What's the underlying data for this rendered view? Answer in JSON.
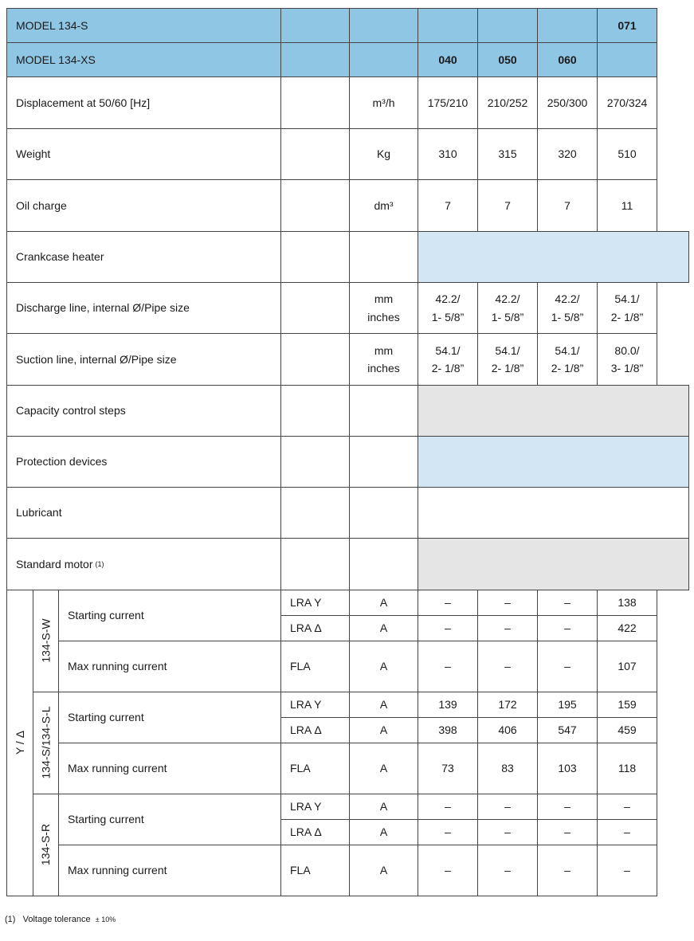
{
  "columns": [
    "040",
    "050",
    "060",
    "071"
  ],
  "header_rows": [
    {
      "label": "MODEL 134-S",
      "values": [
        "",
        "",
        "",
        "071"
      ]
    },
    {
      "label": "MODEL 134-XS",
      "values": [
        "040",
        "050",
        "060",
        ""
      ]
    }
  ],
  "spec_rows": [
    {
      "label": "Displacement at 50/60 [Hz]",
      "unit": [
        "m³/h"
      ],
      "values": [
        "175/210",
        "210/252",
        "250/300",
        "270/324"
      ]
    },
    {
      "label": "Weight",
      "unit": [
        "Kg"
      ],
      "values": [
        "310",
        "315",
        "320",
        "510"
      ]
    },
    {
      "label": "Oil charge",
      "unit": [
        "dm³"
      ],
      "values": [
        "7",
        "7",
        "7",
        "11"
      ]
    },
    {
      "label": "Crankcase heater",
      "unit": [],
      "fill": "blue"
    },
    {
      "label": "Discharge line, internal Ø/Pipe size",
      "unit": [
        "mm",
        "inches"
      ],
      "values": [
        [
          "42.2/",
          "1- 5/8”"
        ],
        [
          "42.2/",
          "1- 5/8”"
        ],
        [
          "42.2/",
          "1- 5/8”"
        ],
        [
          "54.1/",
          "2- 1/8”"
        ]
      ]
    },
    {
      "label": "Suction line, internal Ø/Pipe size",
      "unit": [
        "mm",
        "inches"
      ],
      "values": [
        [
          "54.1/",
          "2- 1/8”"
        ],
        [
          "54.1/",
          "2- 1/8”"
        ],
        [
          "54.1/",
          "2- 1/8”"
        ],
        [
          "80.0/",
          "3- 1/8”"
        ]
      ]
    },
    {
      "label": "Capacity control steps",
      "unit": [],
      "fill": "grey"
    },
    {
      "label": "Protection devices",
      "unit": [],
      "fill": "blue"
    },
    {
      "label": "Lubricant",
      "unit": [],
      "fill": "white"
    },
    {
      "label": "Standard motor",
      "footnote_ref": "(1)",
      "unit": [],
      "fill": "grey"
    }
  ],
  "motor": {
    "connection": "Y / Δ",
    "starting_label": "Starting current",
    "running_label": "Max running current",
    "unit": "A",
    "groups": [
      {
        "name": "134-S-W",
        "lra_y": [
          "–",
          "–",
          "–",
          "138"
        ],
        "lra_d": [
          "–",
          "–",
          "–",
          "422"
        ],
        "fla": [
          "–",
          "–",
          "–",
          "107"
        ]
      },
      {
        "name": "134-S/134-S-L",
        "lra_y": [
          "139",
          "172",
          "195",
          "159"
        ],
        "lra_d": [
          "398",
          "406",
          "547",
          "459"
        ],
        "fla": [
          "73",
          "83",
          "103",
          "118"
        ]
      },
      {
        "name": "134-S-R",
        "lra_y": [
          "–",
          "–",
          "–",
          "–"
        ],
        "lra_d": [
          "–",
          "–",
          "–",
          "–"
        ],
        "fla": [
          "–",
          "–",
          "–",
          "–"
        ]
      }
    ],
    "labels": {
      "lra_y": "LRA Y",
      "lra_d": "LRA Δ",
      "fla": "FLA"
    }
  },
  "footnote": {
    "ref": "(1)",
    "text": "Voltage tolerance",
    "tol": "± 10%"
  },
  "colors": {
    "header": "#8fc6e4",
    "light_blue": "#d2e6f3",
    "grey": "#e5e5e5"
  }
}
